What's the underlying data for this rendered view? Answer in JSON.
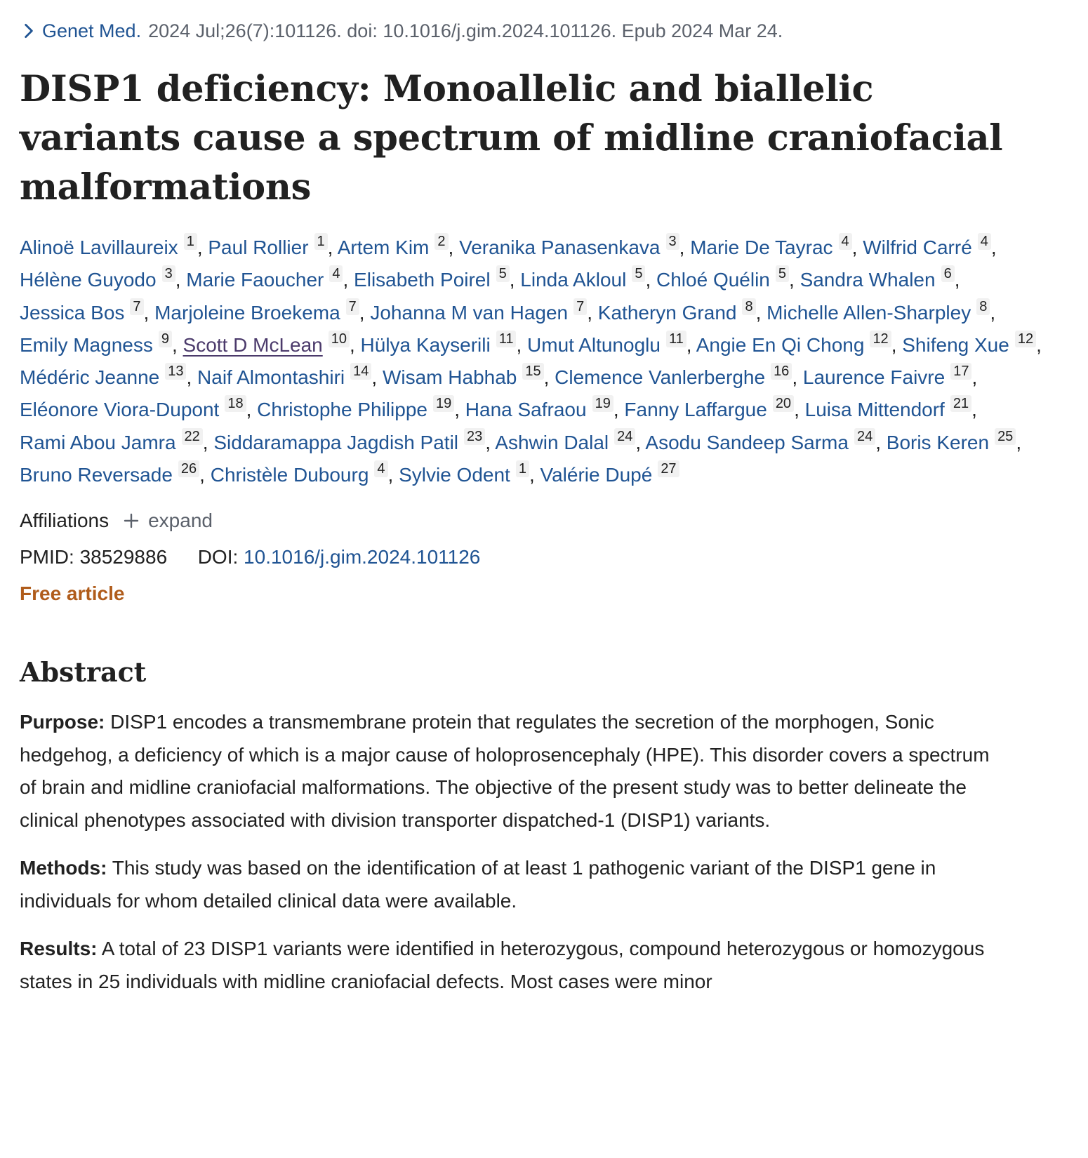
{
  "citation": {
    "journal": "Genet Med.",
    "details": "2024 Jul;26(7):101126. doi: 10.1016/j.gim.2024.101126. Epub 2024 Mar 24."
  },
  "title": "DISP1 deficiency: Monoallelic and biallelic variants cause a spectrum of midline craniofacial malformations",
  "authors": [
    {
      "name": "Alinoë Lavillaureix",
      "aff": "1"
    },
    {
      "name": "Paul Rollier",
      "aff": "1"
    },
    {
      "name": "Artem Kim",
      "aff": "2"
    },
    {
      "name": "Veranika Panasenkava",
      "aff": "3"
    },
    {
      "name": "Marie De Tayrac",
      "aff": "4"
    },
    {
      "name": "Wilfrid Carré",
      "aff": "4"
    },
    {
      "name": "Hélène Guyodo",
      "aff": "3"
    },
    {
      "name": "Marie Faoucher",
      "aff": "4"
    },
    {
      "name": "Elisabeth Poirel",
      "aff": "5"
    },
    {
      "name": "Linda Akloul",
      "aff": "5"
    },
    {
      "name": "Chloé Quélin",
      "aff": "5"
    },
    {
      "name": "Sandra Whalen",
      "aff": "6"
    },
    {
      "name": "Jessica Bos",
      "aff": "7"
    },
    {
      "name": "Marjoleine Broekema",
      "aff": "7"
    },
    {
      "name": "Johanna M van Hagen",
      "aff": "7"
    },
    {
      "name": "Katheryn Grand",
      "aff": "8"
    },
    {
      "name": "Michelle Allen-Sharpley",
      "aff": "8"
    },
    {
      "name": "Emily Magness",
      "aff": "9"
    },
    {
      "name": "Scott D McLean",
      "aff": "10"
    },
    {
      "name": "Hülya Kayserili",
      "aff": "11"
    },
    {
      "name": "Umut Altunoglu",
      "aff": "11"
    },
    {
      "name": "Angie En Qi Chong",
      "aff": "12"
    },
    {
      "name": "Shifeng Xue",
      "aff": "12"
    },
    {
      "name": "Médéric Jeanne",
      "aff": "13"
    },
    {
      "name": "Naif Almontashiri",
      "aff": "14"
    },
    {
      "name": "Wisam Habhab",
      "aff": "15"
    },
    {
      "name": "Clemence Vanlerberghe",
      "aff": "16"
    },
    {
      "name": "Laurence Faivre",
      "aff": "17"
    },
    {
      "name": "Eléonore Viora-Dupont",
      "aff": "18"
    },
    {
      "name": "Christophe Philippe",
      "aff": "19"
    },
    {
      "name": "Hana Safraou",
      "aff": "19"
    },
    {
      "name": "Fanny Laffargue",
      "aff": "20"
    },
    {
      "name": "Luisa Mittendorf",
      "aff": "21"
    },
    {
      "name": "Rami Abou Jamra",
      "aff": "22"
    },
    {
      "name": "Siddaramappa Jagdish Patil",
      "aff": "23"
    },
    {
      "name": "Ashwin Dalal",
      "aff": "24"
    },
    {
      "name": "Asodu Sandeep Sarma",
      "aff": "24"
    },
    {
      "name": "Boris Keren",
      "aff": "25"
    },
    {
      "name": "Bruno Reversade",
      "aff": "26"
    },
    {
      "name": "Christèle Dubourg",
      "aff": "4"
    },
    {
      "name": "Sylvie Odent",
      "aff": "1"
    },
    {
      "name": "Valérie Dupé",
      "aff": "27"
    }
  ],
  "affiliations": {
    "label": "Affiliations",
    "expand": "expand"
  },
  "ids": {
    "pmid_label": "PMID:",
    "pmid": "38529886",
    "doi_label": "DOI:",
    "doi": "10.1016/j.gim.2024.101126"
  },
  "free_article": "Free article",
  "abstract": {
    "heading": "Abstract",
    "sections": [
      {
        "label": "Purpose:",
        "text": "DISP1 encodes a transmembrane protein that regulates the secretion of the morphogen, Sonic hedgehog, a deficiency of which is a major cause of holoprosencephaly (HPE). This disorder covers a spectrum of brain and midline craniofacial malformations. The objective of the present study was to better delineate the clinical phenotypes associated with division transporter dispatched-1 (DISP1) variants."
      },
      {
        "label": "Methods:",
        "text": "This study was based on the identification of at least 1 pathogenic variant of the DISP1 gene in individuals for whom detailed clinical data were available."
      },
      {
        "label": "Results:",
        "text": "A total of 23 DISP1 variants were identified in heterozygous, compound heterozygous or homozygous states in 25 individuals with midline craniofacial defects. Most cases were minor"
      }
    ]
  },
  "colors": {
    "link": "#205493",
    "free_article": "#b05c1b",
    "text": "#212121",
    "muted": "#5b616b"
  },
  "icons": [
    "chevron-right-icon",
    "plus-icon"
  ]
}
